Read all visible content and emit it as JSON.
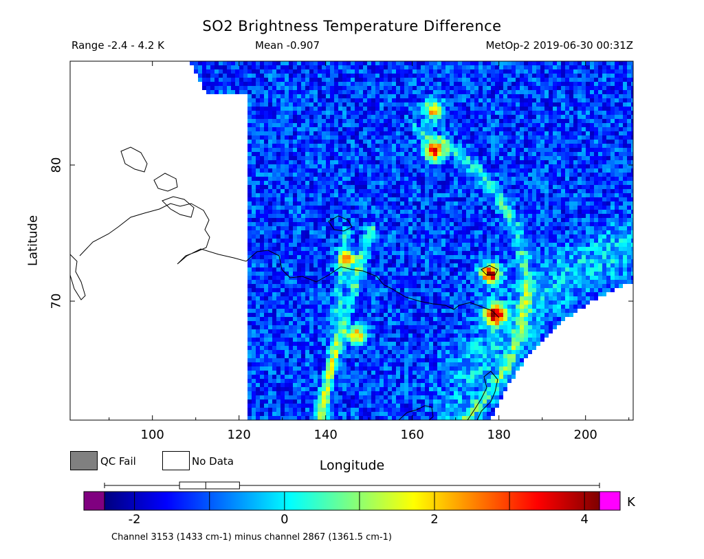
{
  "chart_data": {
    "type": "heatmap",
    "title": "SO2 Brightness Temperature Difference",
    "range_text": "Range -2.4 - 4.2 K",
    "mean_text": "Mean -0.907",
    "satellite_text": "MetOp-2 2019-06-30 00:31Z",
    "xlabel": "Longitude",
    "ylabel": "Latitude",
    "xlim": [
      81,
      211
    ],
    "ylim": [
      60,
      88
    ],
    "x_ticks": [
      100,
      120,
      140,
      160,
      180,
      200
    ],
    "y_ticks": [
      70,
      80
    ],
    "legend": [
      {
        "label": "QC Fail",
        "color": "#808080"
      },
      {
        "label": "No Data",
        "color": "#ffffff"
      }
    ],
    "colorbar": {
      "unit": "K",
      "min": -2.4,
      "max": 4.2,
      "ticks": [
        -2,
        0,
        2,
        4
      ],
      "underflow_color": "#800080",
      "overflow_color": "#ff00ff",
      "colors": [
        "#00007f",
        "#0000ff",
        "#007fff",
        "#00ffff",
        "#7fff7f",
        "#ffff00",
        "#ff7f00",
        "#ff0000",
        "#7f0000"
      ]
    },
    "boxplot": {
      "whisker_low": -2.4,
      "q1": -1.4,
      "median": -1.05,
      "q3": -0.6,
      "whisker_high": 4.2
    },
    "footnote": "Channel 3153 (1433 cm-1) minus channel 2867 (1361.5 cm-1)",
    "hotspots": [
      {
        "lon": 178,
        "lat": 72.0,
        "value": 4.0
      },
      {
        "lon": 179,
        "lat": 69.0,
        "value": 4.1
      },
      {
        "lon": 165,
        "lat": 81.0,
        "value": 3.2
      },
      {
        "lon": 165,
        "lat": 84.0,
        "value": 2.4
      },
      {
        "lon": 147,
        "lat": 67.5,
        "value": 2.2
      },
      {
        "lon": 145,
        "lat": 73.0,
        "value": 2.0
      }
    ]
  }
}
